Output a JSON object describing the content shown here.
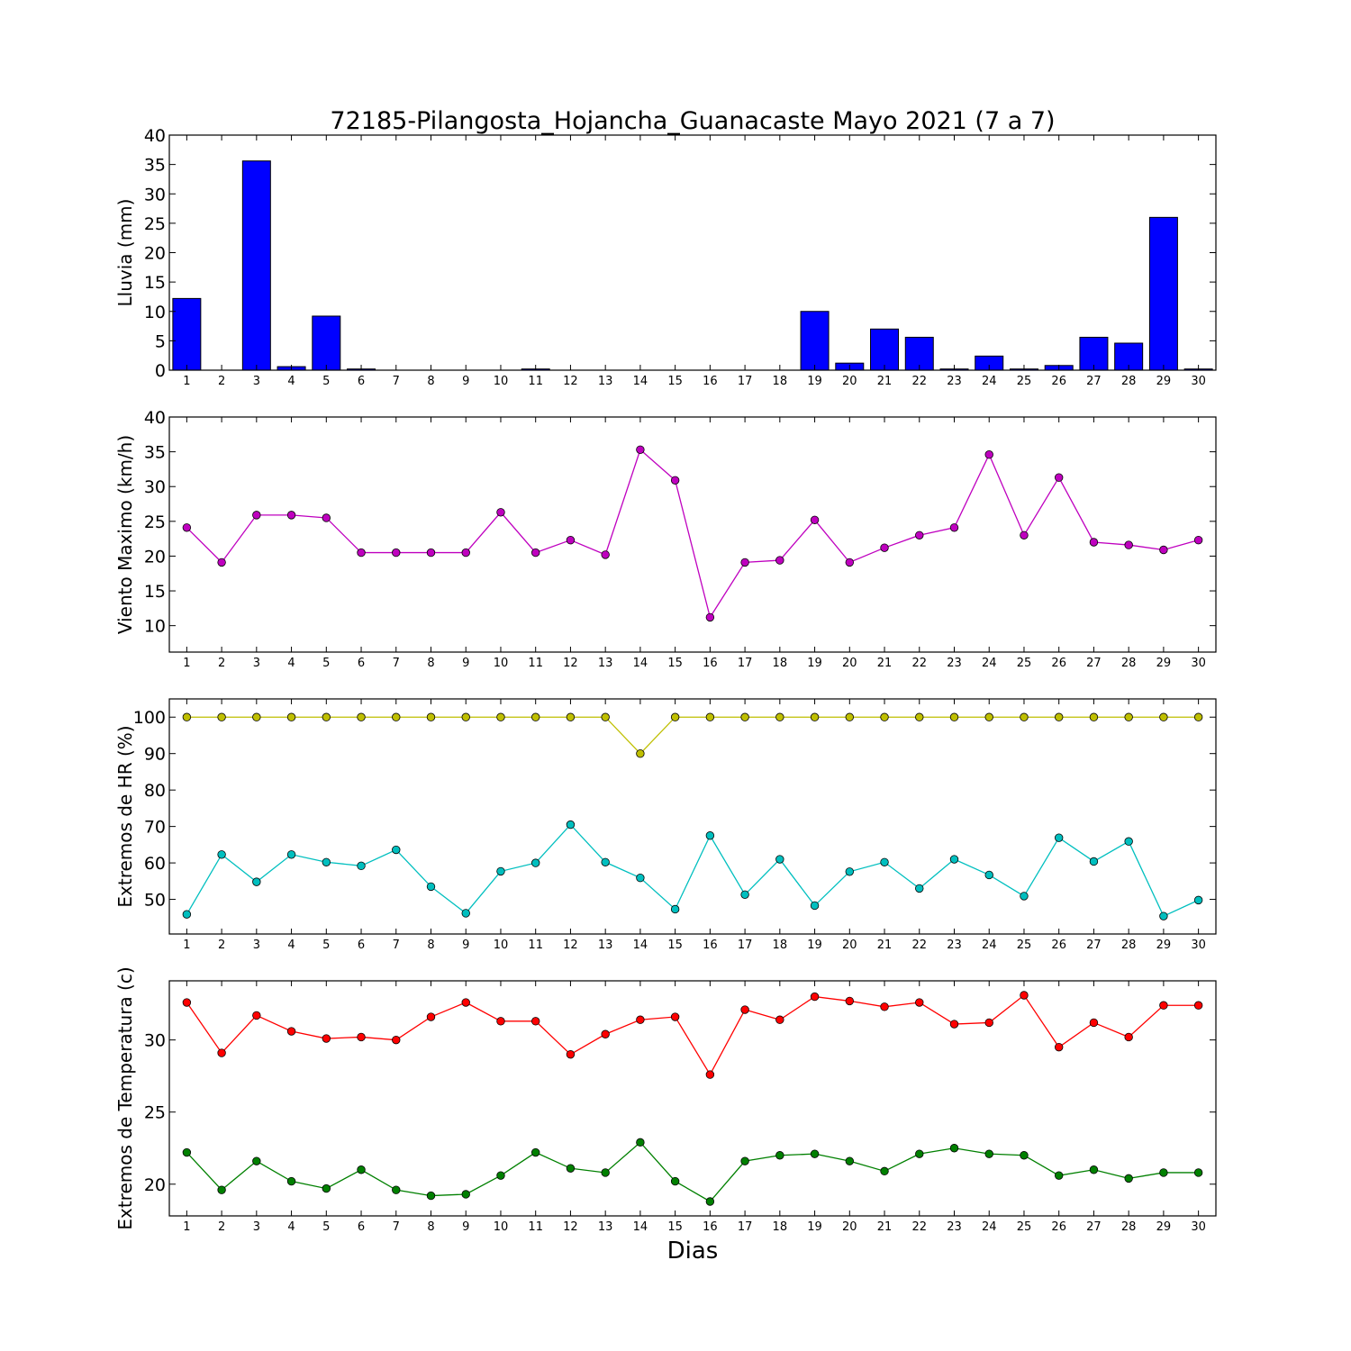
{
  "figure": {
    "title": "72185-Pilangosta_Hojancha_Guanacaste Mayo 2021  (7 a 7)",
    "xlabel": "Dias"
  },
  "chart_data": [
    {
      "type": "bar",
      "ylabel": "Lluvia (mm)",
      "x": [
        1,
        2,
        3,
        4,
        5,
        6,
        7,
        8,
        9,
        10,
        11,
        12,
        13,
        14,
        15,
        16,
        17,
        18,
        19,
        20,
        21,
        22,
        23,
        24,
        25,
        26,
        27,
        28,
        29,
        30
      ],
      "xlim": [
        0.5,
        30.5
      ],
      "ylim": [
        0,
        40
      ],
      "yticks": [
        0,
        5,
        10,
        15,
        20,
        25,
        30,
        35,
        40
      ],
      "series": [
        {
          "color": "#0000ff",
          "values": [
            12.2,
            0,
            35.6,
            0.6,
            9.2,
            0.2,
            0,
            0,
            0,
            0,
            0.2,
            0,
            0,
            0,
            0,
            0,
            0,
            0,
            10,
            1.2,
            7,
            5.6,
            0.2,
            2.4,
            0.2,
            0.8,
            5.6,
            4.6,
            26,
            0.2
          ]
        }
      ]
    },
    {
      "type": "line",
      "ylabel": "Viento Maximo (km/h)",
      "x": [
        1,
        2,
        3,
        4,
        5,
        6,
        7,
        8,
        9,
        10,
        11,
        12,
        13,
        14,
        15,
        16,
        17,
        18,
        19,
        20,
        21,
        22,
        23,
        24,
        25,
        26,
        27,
        28,
        29,
        30
      ],
      "xlim": [
        0.5,
        30.5
      ],
      "ylim": [
        6.2,
        40
      ],
      "yticks": [
        10,
        15,
        20,
        25,
        30,
        35,
        40
      ],
      "series": [
        {
          "color": "#bf00bf",
          "values": [
            24.1,
            19.1,
            25.9,
            25.9,
            25.5,
            20.5,
            20.5,
            20.5,
            20.5,
            26.3,
            20.5,
            22.3,
            20.2,
            35.3,
            30.9,
            11.2,
            19.1,
            19.4,
            25.2,
            19.1,
            21.2,
            23,
            24.1,
            34.6,
            23,
            31.3,
            22,
            21.6,
            20.9,
            22.3
          ]
        }
      ]
    },
    {
      "type": "line",
      "ylabel": "Extremos de HR (%)",
      "x": [
        1,
        2,
        3,
        4,
        5,
        6,
        7,
        8,
        9,
        10,
        11,
        12,
        13,
        14,
        15,
        16,
        17,
        18,
        19,
        20,
        21,
        22,
        23,
        24,
        25,
        26,
        27,
        28,
        29,
        30
      ],
      "xlim": [
        0.5,
        30.5
      ],
      "ylim": [
        40.5,
        105
      ],
      "yticks": [
        50,
        60,
        70,
        80,
        90,
        100
      ],
      "series": [
        {
          "color": "#bfbf00",
          "values": [
            100,
            100,
            100,
            100,
            100,
            100,
            100,
            100,
            100,
            100,
            100,
            100,
            100,
            90,
            100,
            100,
            100,
            100,
            100,
            100,
            100,
            100,
            100,
            100,
            100,
            100,
            100,
            100,
            100,
            100
          ]
        },
        {
          "color": "#00bfbf",
          "values": [
            45.9,
            62.3,
            54.8,
            62.3,
            60.2,
            59.2,
            63.6,
            53.5,
            46.2,
            57.7,
            60,
            70.5,
            60.2,
            55.9,
            47.3,
            67.5,
            51.3,
            61,
            48.3,
            57.6,
            60.2,
            53,
            61,
            56.7,
            50.9,
            66.9,
            60.4,
            65.9,
            45.4,
            49.8
          ]
        }
      ]
    },
    {
      "type": "line",
      "ylabel": "Extremos de Temperatura (c)",
      "x": [
        1,
        2,
        3,
        4,
        5,
        6,
        7,
        8,
        9,
        10,
        11,
        12,
        13,
        14,
        15,
        16,
        17,
        18,
        19,
        20,
        21,
        22,
        23,
        24,
        25,
        26,
        27,
        28,
        29,
        30
      ],
      "xlim": [
        0.5,
        30.5
      ],
      "ylim": [
        17.8,
        34.1
      ],
      "yticks": [
        20,
        25,
        30
      ],
      "series": [
        {
          "color": "#ff0000",
          "values": [
            32.6,
            29.1,
            31.7,
            30.6,
            30.1,
            30.2,
            30,
            31.6,
            32.6,
            31.3,
            31.3,
            29,
            30.4,
            31.4,
            31.6,
            27.6,
            32.1,
            31.4,
            33,
            32.7,
            32.3,
            32.6,
            31.1,
            31.2,
            33.1,
            29.5,
            31.2,
            30.2,
            32.4,
            32.4
          ]
        },
        {
          "color": "#008000",
          "values": [
            22.2,
            19.6,
            21.6,
            20.2,
            19.7,
            21,
            19.6,
            19.2,
            19.3,
            20.6,
            22.2,
            21.1,
            20.8,
            22.9,
            20.2,
            18.8,
            21.6,
            22,
            22.1,
            21.6,
            20.9,
            22.1,
            22.5,
            22.1,
            22,
            20.6,
            21,
            20.4,
            20.8,
            20.8
          ]
        }
      ]
    }
  ]
}
